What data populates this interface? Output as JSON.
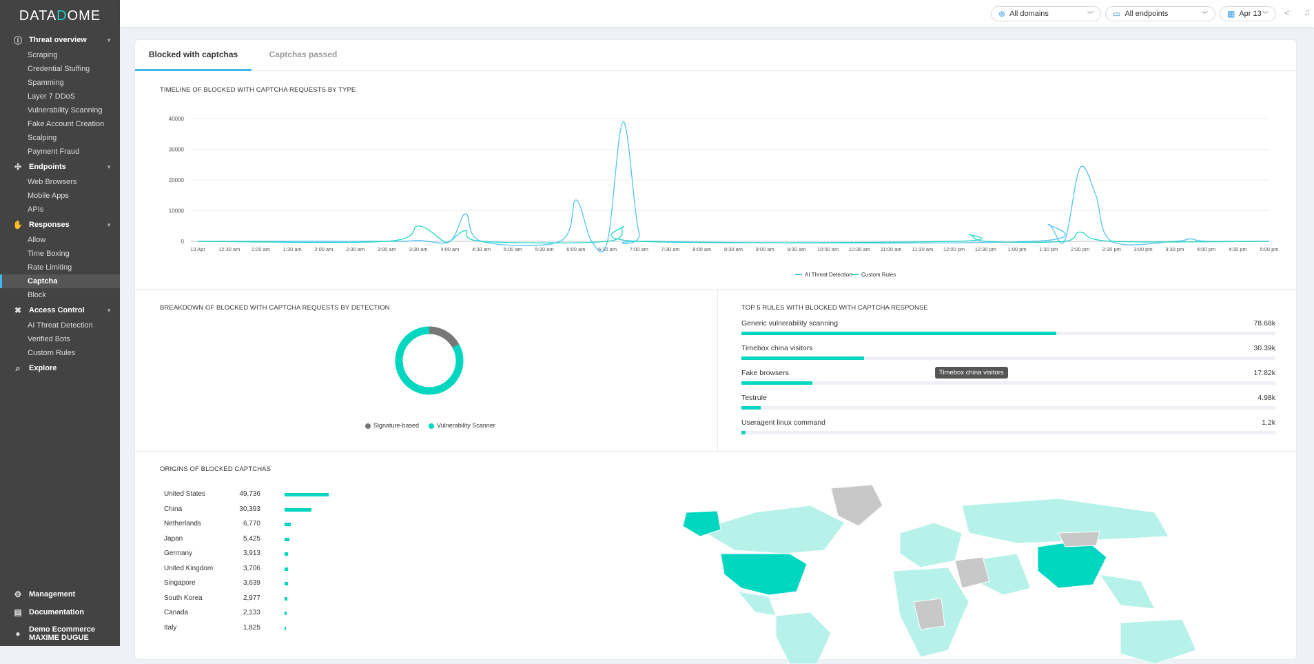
{
  "brand": {
    "logo": "DATADOME"
  },
  "sidebar": {
    "sections": [
      {
        "label": "Threat overview",
        "icon": "alert-circle-icon",
        "items": [
          "Scraping",
          "Credential Stuffing",
          "Spamming",
          "Layer 7 DDoS",
          "Vulnerability Scanning",
          "Fake Account Creation",
          "Scalping",
          "Payment Fraud"
        ]
      },
      {
        "label": "Endpoints",
        "icon": "endpoints-icon",
        "items": [
          "Web Browsers",
          "Mobile Apps",
          "APIs"
        ]
      },
      {
        "label": "Responses",
        "icon": "hand-icon",
        "items": [
          "Allow",
          "Time Boxing",
          "Rate Limiting",
          "Captcha",
          "Block"
        ]
      },
      {
        "label": "Access Control",
        "icon": "tools-icon",
        "items": [
          "AI Threat Detection",
          "Verified Bots",
          "Custom Rules"
        ]
      },
      {
        "label": "Explore",
        "icon": "explore-icon",
        "items": []
      }
    ],
    "active": "Captcha",
    "bottom": {
      "management": "Management",
      "documentation": "Documentation",
      "account": "Demo Ecommerce",
      "user": "MAXIME DUGUE"
    }
  },
  "topbar": {
    "domains": "All domains",
    "endpoints": "All endpoints",
    "date": "Apr 13"
  },
  "tabs": [
    "Blocked with captchas",
    "Captchas passed"
  ],
  "timeline": {
    "title": "TIMELINE OF BLOCKED WITH CAPTCHA REQUESTS BY TYPE"
  },
  "breakdown": {
    "title": "BREAKDOWN OF BLOCKED WITH CAPTCHA REQUESTS BY DETECTION",
    "legend": [
      "Signature-based",
      "Vulnerability Scanner"
    ]
  },
  "rules": {
    "title": "TOP 5 RULES WITH BLOCKED WITH CAPTCHA RESPONSE",
    "items": [
      {
        "label": "Generic vulnerability scanning",
        "value": "78.68k",
        "pct": 59
      },
      {
        "label": "Timebox china visitors",
        "value": "30.39k",
        "pct": 23
      },
      {
        "label": "Fake browsers",
        "value": "17.82k",
        "pct": 13.3
      },
      {
        "label": "Testrule",
        "value": "4.98k",
        "pct": 3.6
      },
      {
        "label": "Useragent linux command",
        "value": "1.2k",
        "pct": 0.8
      }
    ],
    "tooltip": "Timebox china visitors"
  },
  "origins": {
    "title": "ORIGINS OF BLOCKED CAPTCHAS",
    "items": [
      {
        "country": "United States",
        "value": "49,736",
        "n": 49736
      },
      {
        "country": "China",
        "value": "30,393",
        "n": 30393
      },
      {
        "country": "Netherlands",
        "value": "6,770",
        "n": 6770
      },
      {
        "country": "Japan",
        "value": "5,425",
        "n": 5425
      },
      {
        "country": "Germany",
        "value": "3,913",
        "n": 3913
      },
      {
        "country": "United Kingdom",
        "value": "3,706",
        "n": 3706
      },
      {
        "country": "Singapore",
        "value": "3,639",
        "n": 3639
      },
      {
        "country": "South Korea",
        "value": "2,977",
        "n": 2977
      },
      {
        "country": "Canada",
        "value": "2,133",
        "n": 2133
      },
      {
        "country": "Italy",
        "value": "1,825",
        "n": 1825
      }
    ]
  },
  "colors": {
    "ai": "#4fc3f7",
    "custom": "#1ed8c3",
    "accent": "#00d6c0",
    "signature": "#777777"
  },
  "chart_data": [
    {
      "type": "line",
      "title": "TIMELINE OF BLOCKED WITH CAPTCHA REQUESTS BY TYPE",
      "xlabel": "",
      "ylabel": "",
      "ylim": [
        0,
        40000
      ],
      "yticks": [
        "0",
        "10000",
        "20000",
        "30000",
        "40000"
      ],
      "ytick_values": [
        0,
        10000,
        20000,
        30000,
        40000
      ],
      "xticks": [
        "13 Apr",
        "12:30 am",
        "1:00 am",
        "1:30 am",
        "2:00 am",
        "2:30 am",
        "3:00 am",
        "3:30 am",
        "4:00 am",
        "4:30 am",
        "5:00 am",
        "5:30 am",
        "6:00 am",
        "6:30 am",
        "7:00 am",
        "7:30 am",
        "8:00 am",
        "8:30 am",
        "9:00 am",
        "9:30 am",
        "10:00 am",
        "10:30 am",
        "11:00 am",
        "11:30 am",
        "12:00 pm",
        "12:30 pm",
        "1:00 pm",
        "1:30 pm",
        "2:00 pm",
        "2:30 pm",
        "3:00 pm",
        "3:30 pm",
        "4:00 pm",
        "4:30 pm",
        "5:00 pm"
      ],
      "xlim_hours": [
        0,
        17
      ],
      "grid": true,
      "legend_position": "bottom",
      "series": [
        {
          "name": "AI Threat Detection",
          "points_hours": [
            [
              0,
              0
            ],
            [
              3,
              0
            ],
            [
              3.5,
              300
            ],
            [
              4,
              0
            ],
            [
              4.25,
              9000
            ],
            [
              4.5,
              0
            ],
            [
              5.75,
              0
            ],
            [
              6,
              13500
            ],
            [
              6.25,
              0
            ],
            [
              6.5,
              0
            ],
            [
              6.75,
              39000
            ],
            [
              7,
              3000
            ],
            [
              7.25,
              0
            ],
            [
              13.25,
              0
            ],
            [
              13.5,
              5500
            ],
            [
              13.75,
              0
            ],
            [
              14,
              24000
            ],
            [
              14.25,
              15000
            ],
            [
              14.5,
              0
            ],
            [
              15.5,
              0
            ],
            [
              15.75,
              800
            ],
            [
              16,
              0
            ],
            [
              17,
              0
            ]
          ]
        },
        {
          "name": "Custom Rules",
          "points_hours": [
            [
              0,
              0
            ],
            [
              3,
              0
            ],
            [
              3.5,
              5000
            ],
            [
              3.9,
              0
            ],
            [
              4,
              0
            ],
            [
              4.25,
              3500
            ],
            [
              4.5,
              0
            ],
            [
              6.5,
              0
            ],
            [
              6.75,
              4800
            ],
            [
              7,
              0
            ],
            [
              12,
              0
            ],
            [
              12.25,
              2200
            ],
            [
              12.5,
              0
            ],
            [
              13.75,
              0
            ],
            [
              14,
              3000
            ],
            [
              14.5,
              0
            ],
            [
              17,
              0
            ]
          ]
        }
      ]
    },
    {
      "type": "pie",
      "title": "BREAKDOWN OF BLOCKED WITH CAPTCHA REQUESTS BY DETECTION",
      "donut": true,
      "categories": [
        "Signature-based",
        "Vulnerability Scanner"
      ],
      "values": [
        17,
        83
      ]
    }
  ]
}
